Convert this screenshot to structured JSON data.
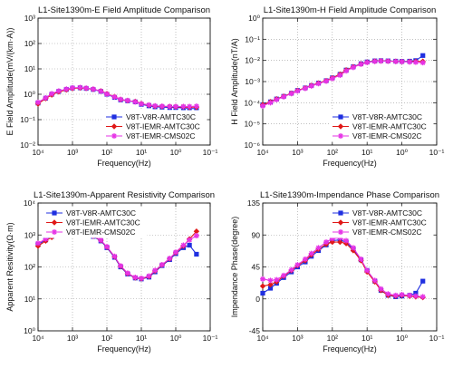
{
  "colors": {
    "V8T-V8R-AMTC30C": "#1f2fe0",
    "V8T-IEMR-AMTC30C": "#e01818",
    "V8T-IEMR-CMS02C": "#e633e6"
  },
  "chart_data": [
    {
      "id": "e-field",
      "type": "line",
      "title": "L1-Site1390m-E Field Amplitude Comparison",
      "xlabel": "Frequency(Hz)",
      "ylabel": "E Field Amplitude(mV/(km·A))",
      "x_reversed": true,
      "xlim_exp": [
        4,
        -1
      ],
      "ylim_exp": [
        -2,
        3
      ],
      "x_tick_labels": [
        "10⁴",
        "10³",
        "10²",
        "10¹",
        "10⁰",
        "10⁻¹"
      ],
      "y_tick_labels": [
        "10⁻²",
        "10⁻¹",
        "10⁰",
        "10¹",
        "10²",
        "10³"
      ],
      "legend_position": "bottom-right",
      "series": [
        {
          "name": "V8T-V8R-AMTC30C",
          "marker": "square",
          "x": [
            10000,
            6000,
            4000,
            2500,
            1500,
            1000,
            600,
            400,
            250,
            150,
            100,
            60,
            40,
            25,
            15,
            10,
            6,
            4,
            2.5,
            1.5,
            1,
            0.6,
            0.4,
            0.25
          ],
          "y": [
            0.45,
            0.7,
            1.0,
            1.3,
            1.55,
            1.75,
            1.8,
            1.7,
            1.55,
            1.3,
            1.0,
            0.75,
            0.6,
            0.55,
            0.5,
            0.4,
            0.35,
            0.32,
            0.31,
            0.3,
            0.3,
            0.29,
            0.28,
            0.27
          ]
        },
        {
          "name": "V8T-IEMR-AMTC30C",
          "marker": "diamond",
          "x": [
            10000,
            6000,
            4000,
            2500,
            1500,
            1000,
            600,
            400,
            250,
            150,
            100,
            60,
            40,
            25,
            15,
            10,
            6,
            4,
            2.5,
            1.5,
            1,
            0.6,
            0.4,
            0.25
          ],
          "y": [
            0.42,
            0.68,
            0.95,
            1.25,
            1.5,
            1.7,
            1.78,
            1.72,
            1.58,
            1.35,
            1.05,
            0.8,
            0.62,
            0.56,
            0.52,
            0.43,
            0.37,
            0.34,
            0.33,
            0.33,
            0.32,
            0.32,
            0.31,
            0.31
          ]
        },
        {
          "name": "V8T-IEMR-CMS02C",
          "marker": "star",
          "x": [
            10000,
            6000,
            4000,
            2500,
            1500,
            1000,
            600,
            400,
            250,
            150,
            100,
            60,
            40,
            25,
            15,
            10,
            6,
            4,
            2.5,
            1.5,
            1,
            0.6,
            0.4,
            0.25
          ],
          "y": [
            0.48,
            0.72,
            1.05,
            1.35,
            1.6,
            1.8,
            1.85,
            1.75,
            1.6,
            1.32,
            1.02,
            0.78,
            0.63,
            0.57,
            0.5,
            0.42,
            0.38,
            0.35,
            0.34,
            0.33,
            0.33,
            0.33,
            0.33,
            0.34
          ]
        }
      ]
    },
    {
      "id": "h-field",
      "type": "line",
      "title": "L1-Site1390m-H Field Amplitude Comparison",
      "xlabel": "Frequency(Hz)",
      "ylabel": "H Field Amplitude(nT/A)",
      "x_reversed": true,
      "xlim_exp": [
        4,
        -1
      ],
      "ylim_exp": [
        -6,
        0
      ],
      "x_tick_labels": [
        "10⁴",
        "10³",
        "10²",
        "10¹",
        "10⁰",
        "10⁻¹"
      ],
      "y_tick_labels": [
        "10⁻⁶",
        "10⁻⁵",
        "10⁻⁴",
        "10⁻³",
        "10⁻²",
        "10⁻¹",
        "10⁰"
      ],
      "legend_position": "bottom-right",
      "series": [
        {
          "name": "V8T-V8R-AMTC30C",
          "marker": "square",
          "x": [
            10000,
            6000,
            4000,
            2500,
            1500,
            1000,
            600,
            400,
            250,
            150,
            100,
            60,
            40,
            25,
            15,
            10,
            6,
            4,
            2.5,
            1.5,
            1,
            0.6,
            0.4,
            0.25
          ],
          "y": [
            8e-05,
            0.00011,
            0.00015,
            0.0002,
            0.00028,
            0.00038,
            0.0005,
            0.00065,
            0.00085,
            0.0011,
            0.0015,
            0.0022,
            0.0035,
            0.005,
            0.007,
            0.0085,
            0.0095,
            0.0097,
            0.0095,
            0.0092,
            0.009,
            0.0092,
            0.0098,
            0.017
          ]
        },
        {
          "name": "V8T-IEMR-AMTC30C",
          "marker": "diamond",
          "x": [
            10000,
            6000,
            4000,
            2500,
            1500,
            1000,
            600,
            400,
            250,
            150,
            100,
            60,
            40,
            25,
            15,
            10,
            6,
            4,
            2.5,
            1.5,
            1,
            0.6,
            0.4,
            0.25
          ],
          "y": [
            8e-05,
            0.00011,
            0.00015,
            0.0002,
            0.00028,
            0.00038,
            0.0005,
            0.00065,
            0.00085,
            0.0011,
            0.0015,
            0.0022,
            0.0035,
            0.005,
            0.0068,
            0.0082,
            0.0092,
            0.0095,
            0.0093,
            0.009,
            0.0088,
            0.0088,
            0.0089,
            0.009
          ]
        },
        {
          "name": "V8T-IEMR-CMS02C",
          "marker": "star",
          "x": [
            10000,
            6000,
            4000,
            2500,
            1500,
            1000,
            600,
            400,
            250,
            150,
            100,
            60,
            40,
            25,
            15,
            10,
            6,
            4,
            2.5,
            1.5,
            1,
            0.6,
            0.4,
            0.25
          ],
          "y": [
            7e-05,
            0.0001,
            0.00014,
            0.00019,
            0.00027,
            0.00036,
            0.00048,
            0.00062,
            0.0008,
            0.00105,
            0.0014,
            0.002,
            0.0032,
            0.0047,
            0.0066,
            0.008,
            0.009,
            0.0093,
            0.0092,
            0.0089,
            0.0087,
            0.0085,
            0.0082,
            0.0078
          ]
        }
      ]
    },
    {
      "id": "resistivity",
      "type": "line",
      "title": "L1-Site1390m-Apparent Resistivity Comparison",
      "xlabel": "Frequency(Hz)",
      "ylabel": "Apparent Resitivity(Ω·m)",
      "x_reversed": true,
      "xlim_exp": [
        4,
        -1
      ],
      "ylim_exp": [
        0,
        4
      ],
      "x_tick_labels": [
        "10⁴",
        "10³",
        "10²",
        "10¹",
        "10⁰",
        "10⁻¹"
      ],
      "y_tick_labels": [
        "10⁰",
        "10¹",
        "10²",
        "10³",
        "10⁴"
      ],
      "legend_position": "top-left",
      "series": [
        {
          "name": "V8T-V8R-AMTC30C",
          "marker": "square",
          "x": [
            10000,
            6000,
            4000,
            2500,
            1500,
            1000,
            600,
            400,
            250,
            150,
            100,
            60,
            40,
            25,
            15,
            10,
            6,
            4,
            2.5,
            1.5,
            1,
            0.6,
            0.4,
            0.25
          ],
          "y": [
            500,
            700,
            900,
            1100,
            1250,
            1350,
            1300,
            1150,
            900,
            650,
            400,
            200,
            100,
            60,
            45,
            42,
            48,
            70,
            110,
            170,
            260,
            400,
            480,
            250
          ]
        },
        {
          "name": "V8T-IEMR-AMTC30C",
          "marker": "diamond",
          "x": [
            10000,
            6000,
            4000,
            2500,
            1500,
            1000,
            600,
            400,
            250,
            150,
            100,
            60,
            40,
            25,
            15,
            10,
            6,
            4,
            2.5,
            1.5,
            1,
            0.6,
            0.4,
            0.25
          ],
          "y": [
            450,
            650,
            850,
            1050,
            1200,
            1300,
            1280,
            1150,
            920,
            680,
            420,
            210,
            105,
            62,
            46,
            43,
            50,
            75,
            115,
            180,
            280,
            450,
            750,
            1300
          ]
        },
        {
          "name": "V8T-IEMR-CMS02C",
          "marker": "star",
          "x": [
            10000,
            6000,
            4000,
            2500,
            1500,
            1000,
            600,
            400,
            250,
            150,
            100,
            60,
            40,
            25,
            15,
            10,
            6,
            4,
            2.5,
            1.5,
            1,
            0.6,
            0.4,
            0.25
          ],
          "y": [
            550,
            750,
            950,
            1150,
            1300,
            1400,
            1350,
            1180,
            940,
            690,
            430,
            215,
            108,
            64,
            47,
            44,
            52,
            78,
            118,
            185,
            290,
            480,
            700,
            950
          ]
        }
      ]
    },
    {
      "id": "phase",
      "type": "line",
      "title": "L1-Site1390m-Impendance Phase Comparison",
      "xlabel": "Frequency(Hz)",
      "ylabel": "Impendance Phase(degree)",
      "x_reversed": true,
      "xlim_exp": [
        4,
        -1
      ],
      "ylim": [
        -45,
        135
      ],
      "x_tick_labels": [
        "10⁴",
        "10³",
        "10²",
        "10¹",
        "10⁰",
        "10⁻¹"
      ],
      "y_tick_labels": [
        "-45",
        "0",
        "45",
        "90",
        "135"
      ],
      "legend_position": "top-right",
      "series": [
        {
          "name": "V8T-V8R-AMTC30C",
          "marker": "square",
          "x": [
            10000,
            6000,
            4000,
            2500,
            1500,
            1000,
            600,
            400,
            250,
            150,
            100,
            60,
            40,
            25,
            15,
            10,
            6,
            4,
            2.5,
            1.5,
            1,
            0.6,
            0.4,
            0.25
          ],
          "y": [
            8,
            15,
            22,
            30,
            38,
            45,
            52,
            60,
            68,
            76,
            82,
            83,
            80,
            70,
            55,
            40,
            25,
            12,
            5,
            3,
            4,
            5,
            8,
            25
          ]
        },
        {
          "name": "V8T-IEMR-AMTC30C",
          "marker": "diamond",
          "x": [
            10000,
            6000,
            4000,
            2500,
            1500,
            1000,
            600,
            400,
            250,
            150,
            100,
            60,
            40,
            25,
            15,
            10,
            6,
            4,
            2.5,
            1.5,
            1,
            0.6,
            0.4,
            0.25
          ],
          "y": [
            18,
            20,
            24,
            32,
            40,
            47,
            54,
            62,
            70,
            77,
            80,
            80,
            78,
            68,
            54,
            38,
            24,
            12,
            5,
            4,
            5,
            4,
            3,
            2
          ]
        },
        {
          "name": "V8T-IEMR-CMS02C",
          "marker": "star",
          "x": [
            10000,
            6000,
            4000,
            2500,
            1500,
            1000,
            600,
            400,
            250,
            150,
            100,
            60,
            40,
            25,
            15,
            10,
            6,
            4,
            2.5,
            1.5,
            1,
            0.6,
            0.4,
            0.25
          ],
          "y": [
            28,
            26,
            27,
            33,
            41,
            48,
            56,
            64,
            72,
            80,
            85,
            86,
            82,
            72,
            56,
            40,
            26,
            14,
            7,
            5,
            6,
            5,
            4,
            3
          ]
        }
      ]
    }
  ]
}
